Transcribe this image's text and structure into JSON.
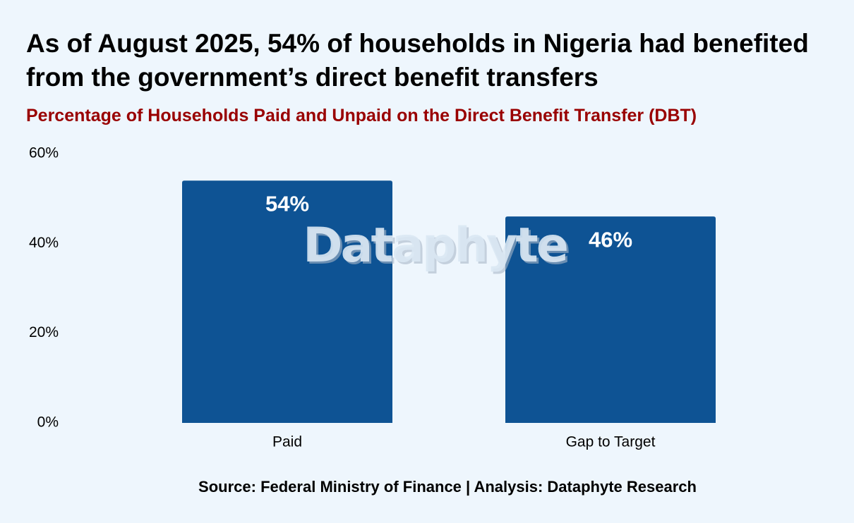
{
  "header": {
    "title": "As of August 2025, 54% of households in Nigeria had benefited from the government’s direct benefit transfers",
    "subtitle": "Percentage of Households Paid and Unpaid on the Direct Benefit Transfer (DBT)"
  },
  "footer": {
    "source": "Source: Federal Ministry of Finance | Analysis: Dataphyte Research"
  },
  "watermark": {
    "text": "Dataphyte"
  },
  "colors": {
    "background": "#eef6fd",
    "bar": "#0e5394",
    "subtitle": "#990000",
    "bar_label": "#ffffff"
  },
  "chart_data": {
    "type": "bar",
    "title": "As of August 2025, 54% of households in Nigeria had benefited from the government’s direct benefit transfers",
    "subtitle": "Percentage of Households Paid and Unpaid on the Direct Benefit Transfer (DBT)",
    "categories": [
      "Paid",
      "Gap to Target"
    ],
    "values": [
      54,
      46
    ],
    "data_labels": [
      "54%",
      "46%"
    ],
    "xlabel": "",
    "ylabel": "",
    "ylim": [
      0,
      60
    ],
    "yticks": [
      0,
      20,
      40,
      60
    ],
    "ytick_labels": [
      "0%",
      "20%",
      "40%",
      "60%"
    ],
    "grid": false,
    "legend": "none"
  }
}
